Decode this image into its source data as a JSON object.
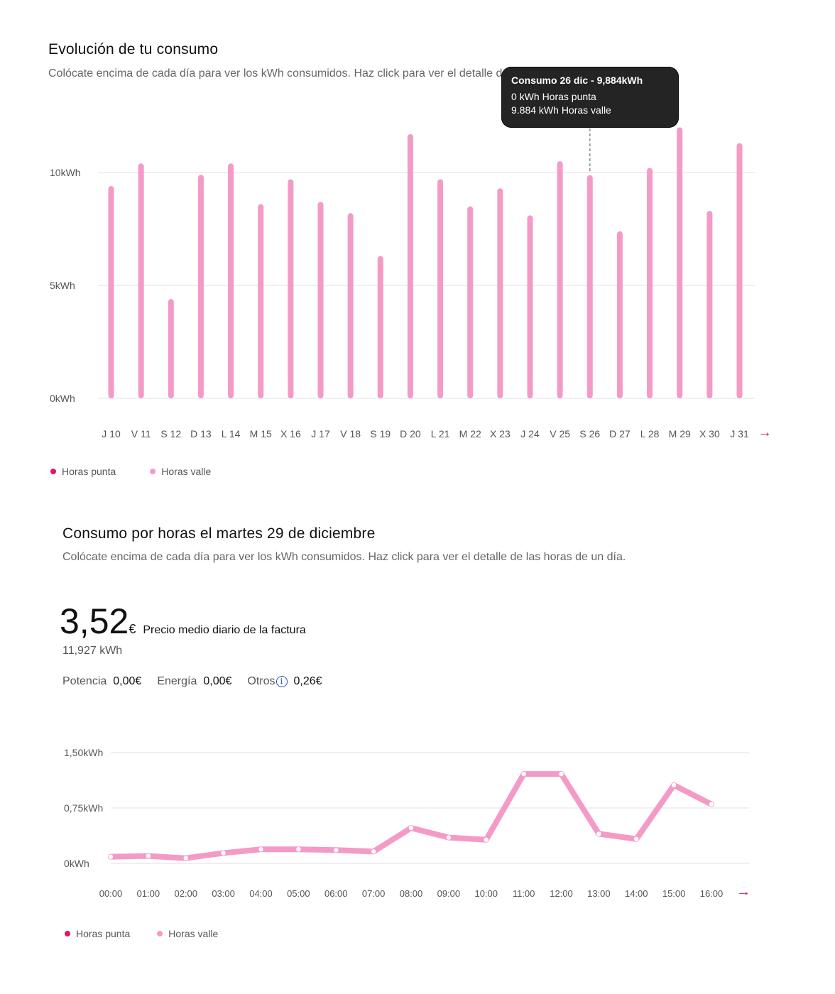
{
  "section1": {
    "title": "Evolución de tu consumo",
    "subtitle": "Colócate encima de cada día para ver los kWh consumidos. Haz click para ver el detalle de las horas de un día.",
    "tooltip": {
      "title": "Consumo 26 dic - 9,884kWh",
      "line1": "0 kWh Horas punta",
      "line2": "9.884 kWh Horas valle"
    },
    "next_arrow": "→",
    "legend": [
      {
        "label": "Horas punta",
        "color": "#e5136b"
      },
      {
        "label": "Horas valle",
        "color": "#f49ac6"
      }
    ]
  },
  "section2": {
    "title": "Consumo por horas el martes 29 de diciembre",
    "subtitle": "Colócate encima de cada día para ver los kWh consumidos. Haz click para ver el detalle de las horas de un día.",
    "price_value": "3,52",
    "price_currency": "€",
    "price_label": "Precio medio diario de la factura",
    "kwh_total": "11,927 kWh",
    "breakdown": {
      "potencia_label": "Potencia",
      "potencia_value": "0,00€",
      "energia_label": "Energía",
      "energia_value": "0,00€",
      "otros_label": "Otros",
      "otros_value": "0,26€",
      "info_glyph": "i"
    },
    "next_arrow": "→",
    "legend": [
      {
        "label": "Horas punta",
        "color": "#e5136b"
      },
      {
        "label": "Horas valle",
        "color": "#f49ac6"
      }
    ]
  },
  "chart_data": [
    {
      "type": "bar",
      "categories": [
        "J 10",
        "V 11",
        "S 12",
        "D 13",
        "L 14",
        "M 15",
        "X 16",
        "J 17",
        "V 18",
        "S 19",
        "D 20",
        "L 21",
        "M 22",
        "X 23",
        "J 24",
        "V 25",
        "S 26",
        "D 27",
        "L 28",
        "M 29",
        "X 30",
        "J 31"
      ],
      "series": [
        {
          "name": "Horas valle",
          "color": "#f49ac6",
          "values": [
            9.4,
            10.4,
            4.4,
            9.9,
            10.4,
            8.6,
            9.7,
            8.7,
            8.2,
            6.3,
            11.7,
            9.7,
            8.5,
            9.3,
            8.1,
            10.5,
            9.884,
            7.4,
            10.2,
            12.0,
            8.3,
            11.3
          ]
        },
        {
          "name": "Horas punta",
          "color": "#e5136b",
          "values": [
            0,
            0,
            0,
            0,
            0,
            0,
            0,
            0,
            0,
            0,
            0,
            0,
            0,
            0,
            0,
            0,
            0,
            0,
            0,
            0,
            0,
            0
          ]
        }
      ],
      "yticks": [
        {
          "value": 0,
          "label": "0kWh"
        },
        {
          "value": 5,
          "label": "5kWh"
        },
        {
          "value": 10,
          "label": "10kWh"
        }
      ],
      "ylim": [
        0,
        12.2
      ],
      "grid": true,
      "highlighted_category": "S 26"
    },
    {
      "type": "line",
      "categories": [
        "00:00",
        "01:00",
        "02:00",
        "03:00",
        "04:00",
        "05:00",
        "06:00",
        "07:00",
        "08:00",
        "09:00",
        "10:00",
        "11:00",
        "12:00",
        "13:00",
        "14:00",
        "15:00",
        "16:00"
      ],
      "series": [
        {
          "name": "Horas valle",
          "color": "#f49ac6",
          "values": [
            0.09,
            0.1,
            0.07,
            0.14,
            0.19,
            0.19,
            0.18,
            0.16,
            0.48,
            0.35,
            0.32,
            1.21,
            1.21,
            0.4,
            0.33,
            1.06,
            0.8
          ]
        }
      ],
      "yticks": [
        {
          "value": 0,
          "label": "0kWh"
        },
        {
          "value": 0.75,
          "label": "0,75kWh"
        },
        {
          "value": 1.5,
          "label": "1,50kWh"
        }
      ],
      "ylim": [
        0,
        1.5
      ],
      "grid": true
    }
  ]
}
